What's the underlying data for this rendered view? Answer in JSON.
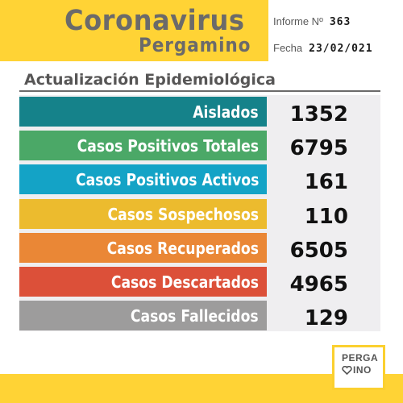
{
  "header": {
    "title": "Coronavirus",
    "subtitle": "Pergamino",
    "report_label": "Informe Nº",
    "report_number": "363",
    "date_label": "Fecha",
    "date_value": "23/02/021"
  },
  "section_title": "Actualización Epidemiológica",
  "stats": [
    {
      "label": "Aislados",
      "value": "1352",
      "color": "#15828a"
    },
    {
      "label": "Casos Positivos Totales",
      "value": "6795",
      "color": "#4ba867"
    },
    {
      "label": "Casos Positivos Activos",
      "value": "161",
      "color": "#14a3c6"
    },
    {
      "label": "Casos Sospechosos",
      "value": "110",
      "color": "#ecbb2e"
    },
    {
      "label": "Casos Recuperados",
      "value": "6505",
      "color": "#ea8736"
    },
    {
      "label": "Casos Descartados",
      "value": "4965",
      "color": "#dc5039"
    },
    {
      "label": "Casos Fallecidos",
      "value": "129",
      "color": "#9d9c9c"
    }
  ],
  "logo": {
    "line1": "PERGA",
    "line2": "INO",
    "icon": "heart-icon"
  },
  "colors": {
    "accent_yellow": "#ffd335",
    "title_gray": "#6b6a6a"
  }
}
